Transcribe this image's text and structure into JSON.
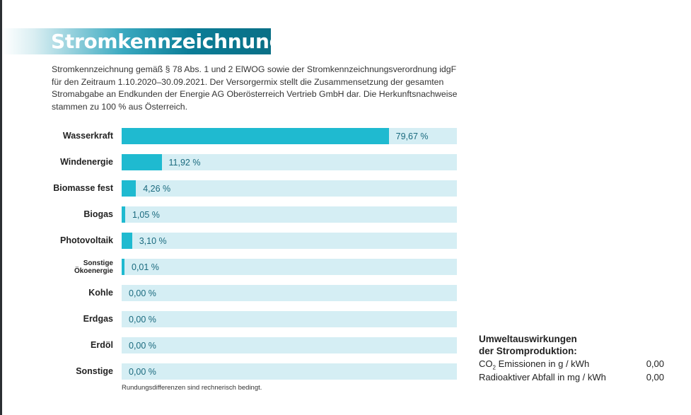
{
  "header": {
    "title": "Stromkennzeichnung"
  },
  "intro": {
    "text": "Stromkennzeichnung gemäß § 78 Abs. 1 und 2 ElWOG sowie der Stromkennzeichnungsverordnung idgF für den Zeitraum 1.10.2020–30.09.2021. Der Versorgermix stellt die Zusammensetzung der gesamten Stromabgabe an Endkunden der Energie AG Oberösterreich Vertrieb GmbH dar. Die Herkunftsnachweise stammen zu 100 % aus Österreich."
  },
  "chart_data": {
    "type": "bar",
    "orientation": "horizontal",
    "categories": [
      "Wasserkraft",
      "Windenergie",
      "Biomasse fest",
      "Biogas",
      "Photovoltaik",
      "Sonstige Ökoenergie",
      "Kohle",
      "Erdgas",
      "Erdöl",
      "Sonstige"
    ],
    "category_lines": [
      [
        "Wasserkraft"
      ],
      [
        "Windenergie"
      ],
      [
        "Biomasse fest"
      ],
      [
        "Biogas"
      ],
      [
        "Photovoltaik"
      ],
      [
        "Sonstige",
        "Ökoenergie"
      ],
      [
        "Kohle"
      ],
      [
        "Erdgas"
      ],
      [
        "Erdöl"
      ],
      [
        "Sonstige"
      ]
    ],
    "values": [
      79.67,
      11.92,
      4.26,
      1.05,
      3.1,
      0.01,
      0.0,
      0.0,
      0.0,
      0.0
    ],
    "value_labels": [
      "79,67 %",
      "11,92 %",
      "4,26 %",
      "1,05 %",
      "3,10 %",
      "0,01 %",
      "0,00 %",
      "0,00 %",
      "0,00 %",
      "0,00 %"
    ],
    "xlim": [
      0,
      100
    ],
    "unit": "%",
    "colors": {
      "fill": "#1fbad0",
      "track": "#d5eef4",
      "label": "#1a6a7e"
    }
  },
  "footnote": "Rundungsdifferenzen sind rechnerisch bedingt.",
  "environment": {
    "title_line1": "Umweltauswirkungen",
    "title_line2": "der Stromproduktion:",
    "co2_prefix": "CO",
    "co2_sub": "2",
    "co2_suffix": " Emissionen in g / kWh",
    "co2_value": "0,00",
    "radio_label": "Radioaktiver Abfall in mg / kWh",
    "radio_value": "0,00"
  },
  "colors": {
    "title_band": "#0b7d97",
    "accent": "#1fbad0"
  }
}
